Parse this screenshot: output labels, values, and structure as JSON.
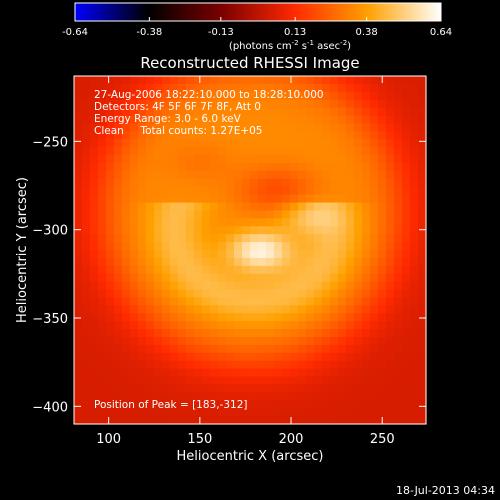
{
  "chart_data": {
    "type": "heatmap",
    "title": "Reconstructed RHESSI Image",
    "xlabel": "Heliocentric X (arcsec)",
    "ylabel": "Heliocentric Y (arcsec)",
    "x_range": [
      81,
      274
    ],
    "y_range": [
      -410,
      -213
    ],
    "x_ticks": [
      100,
      150,
      200,
      250
    ],
    "y_ticks": [
      -250,
      -300,
      -350,
      -400
    ],
    "colorbar": {
      "range": [
        -0.64,
        0.64
      ],
      "ticks": [
        -0.64,
        -0.38,
        -0.13,
        0.13,
        0.38,
        0.64
      ],
      "tick_labels": [
        "-0.64",
        "-0.38",
        "-0.13",
        "0.13",
        "0.38",
        "0.64"
      ],
      "unit_prefix": "(photons cm",
      "unit_exp1": "-2",
      "unit_mid": " s",
      "unit_exp2": "-1",
      "unit_mid2": " asec",
      "unit_exp3": "-2",
      "unit_suffix": ")",
      "colormap": [
        "#0000ff",
        "#000000",
        "#7a0000",
        "#ff2a00",
        "#ffa000",
        "#ffffff"
      ]
    },
    "annotations": {
      "time_range": "27-Aug-2006 18:22:10.000 to 18:28:10.000",
      "detectors": "Detectors: 4F 5F 6F 7F 8F, Att 0",
      "energy": "Energy Range: 3.0 - 6.0 keV",
      "clean": "Clean     Total counts: 1.27E+05",
      "peak": "Position of Peak = [183,-312]"
    },
    "peak": {
      "x": 183,
      "y": -312,
      "value": 0.64
    },
    "background_value": 0.05,
    "timestamp": "18-Jul-2013 04:34"
  }
}
